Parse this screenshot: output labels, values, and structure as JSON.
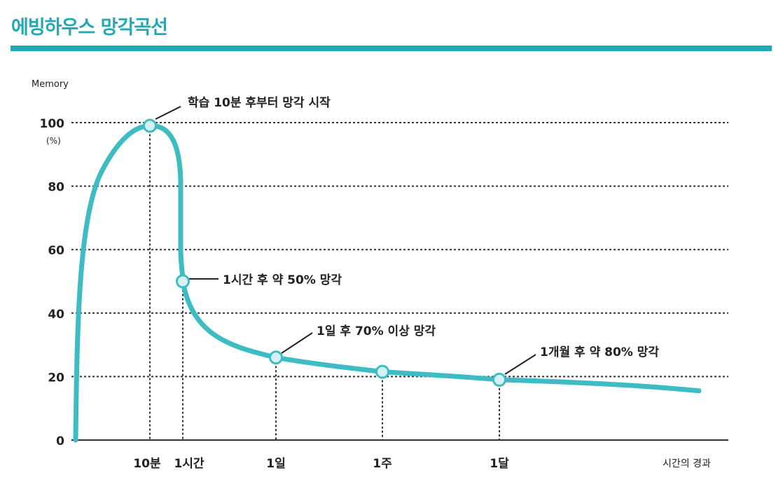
{
  "header": {
    "title": "에빙하우스 망각곡선"
  },
  "colors": {
    "accent": "#23a9b3",
    "curve": "#3dbcc4",
    "marker_fill": "#d6f1f3",
    "text": "#222222",
    "grid": "#333333"
  },
  "chart_data": {
    "type": "line",
    "title": "",
    "ylabel": "Memory",
    "yunit": "(%)",
    "xlabel": "시간의 경과",
    "ylim": [
      0,
      100
    ],
    "yticks": [
      0,
      20,
      40,
      60,
      80,
      100
    ],
    "grid": "dotted horizontal",
    "x_categories": [
      "10분",
      "1시간",
      "1일",
      "1주",
      "1달"
    ],
    "series": [
      {
        "values": [
          {
            "x": "start",
            "y": 0
          },
          {
            "x": "10분",
            "y": 99
          },
          {
            "x": "1시간",
            "y": 50
          },
          {
            "x": "1일",
            "y": 26
          },
          {
            "x": "1주",
            "y": 21.5
          },
          {
            "x": "1달",
            "y": 19
          },
          {
            "x": "end",
            "y": 15.5
          }
        ]
      }
    ],
    "markers": [
      {
        "x": "10분",
        "y": 99,
        "label": "학습 10분 후부터 망각 시작"
      },
      {
        "x": "1시간",
        "y": 50,
        "label": "1시간 후 약 50% 망각"
      },
      {
        "x": "1일",
        "y": 26,
        "label": "1일 후 70% 이상 망각"
      },
      {
        "x": "1달",
        "y": 19,
        "label": "1개월 후 약 80% 망각"
      }
    ],
    "plain_points": [
      {
        "x": "1주",
        "y": 21.5
      }
    ]
  }
}
